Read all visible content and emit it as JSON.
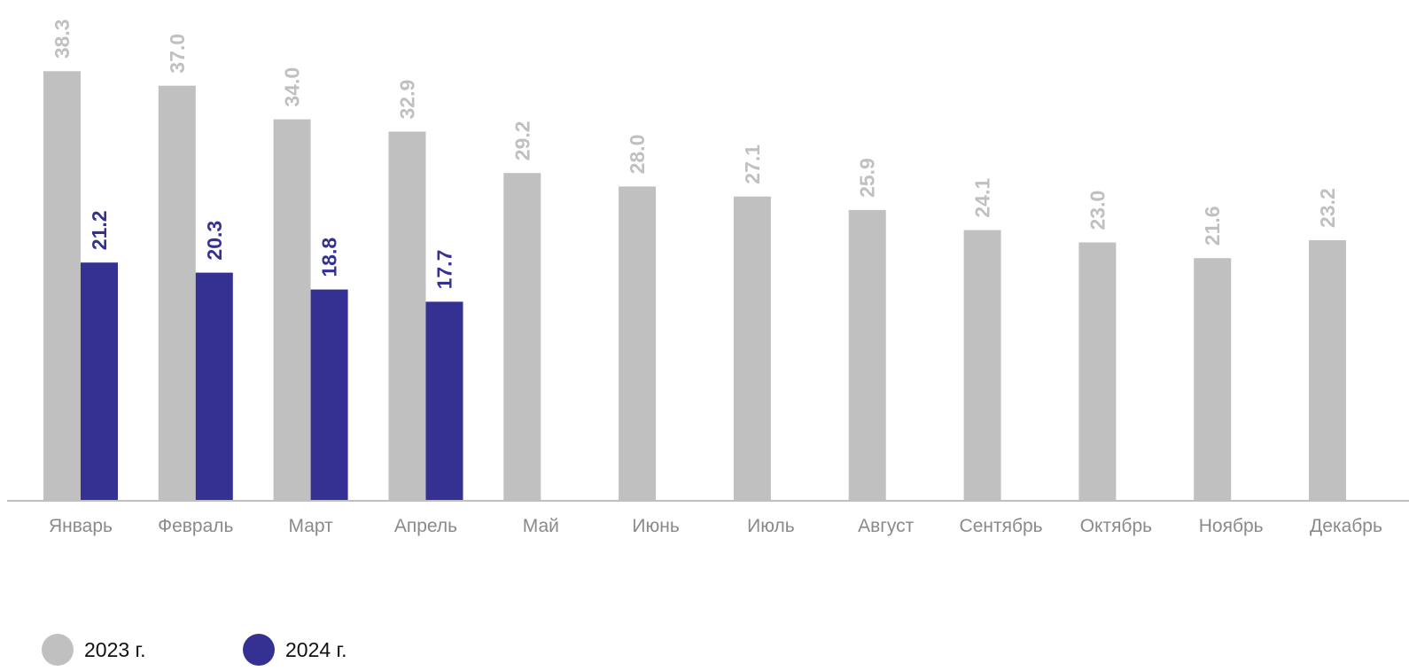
{
  "chart_data": {
    "type": "bar",
    "categories": [
      "Январь",
      "Февраль",
      "Март",
      "Апрель",
      "Май",
      "Июнь",
      "Июль",
      "Август",
      "Сентябрь",
      "Октябрь",
      "Ноябрь",
      "Декабрь"
    ],
    "series": [
      {
        "name": "2023 г.",
        "color": "#c0c0c0",
        "label_color": "#c0c0c0",
        "values": [
          38.3,
          37.0,
          34.0,
          32.9,
          29.2,
          28.0,
          27.1,
          25.9,
          24.1,
          23.0,
          21.6,
          23.2
        ],
        "labels": [
          "38.3",
          "37.0",
          "34.0",
          "32.9",
          "29.2",
          "28.0",
          "27.1",
          "25.9",
          "24.1",
          "23.0",
          "21.6",
          "23.2"
        ]
      },
      {
        "name": "2024 г.",
        "color": "#353192",
        "label_color": "#353192",
        "values": [
          21.2,
          20.3,
          18.8,
          17.7,
          null,
          null,
          null,
          null,
          null,
          null,
          null,
          null
        ],
        "labels": [
          "21.2",
          "20.3",
          "18.8",
          "17.7",
          null,
          null,
          null,
          null,
          null,
          null,
          null,
          null
        ]
      }
    ],
    "title": "",
    "xlabel": "",
    "ylabel": "",
    "ylim": [
      0,
      44
    ],
    "grid": false,
    "legend_position": "bottom-left",
    "axis_color": "#c0c0c0"
  }
}
